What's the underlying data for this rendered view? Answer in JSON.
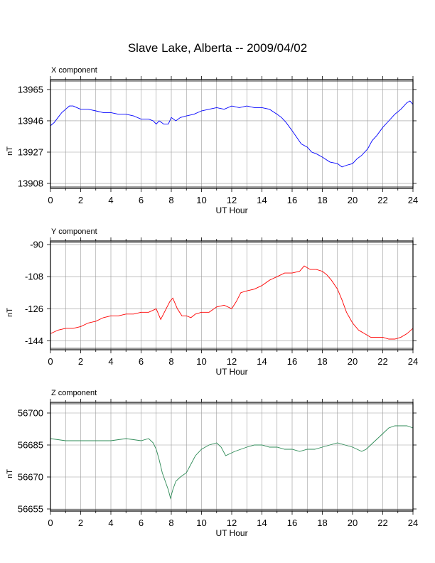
{
  "title": "Slave Lake, Alberta -- 2009/04/02",
  "chart_data": [
    {
      "type": "line",
      "panel_title": "X component",
      "xlabel": "UT Hour",
      "ylabel": "nT",
      "xlim": [
        0,
        24
      ],
      "ylim": [
        13905,
        13971
      ],
      "xticks": [
        0,
        2,
        4,
        6,
        8,
        10,
        12,
        14,
        16,
        18,
        20,
        22,
        24
      ],
      "yticks": [
        13908,
        13927,
        13946,
        13965
      ],
      "grid": true,
      "color": "#0000ff",
      "x": [
        0,
        0.25,
        0.5,
        0.75,
        1,
        1.25,
        1.5,
        1.75,
        2,
        2.5,
        3,
        3.5,
        4,
        4.5,
        5,
        5.5,
        6,
        6.5,
        6.8,
        7,
        7.2,
        7.5,
        7.8,
        8,
        8.3,
        8.6,
        9,
        9.5,
        10,
        10.5,
        11,
        11.5,
        12,
        12.5,
        13,
        13.5,
        14,
        14.5,
        15,
        15.3,
        15.6,
        16,
        16.3,
        16.6,
        17,
        17.3,
        17.6,
        18,
        18.5,
        19,
        19.3,
        19.6,
        20,
        20.3,
        20.6,
        21,
        21.3,
        21.6,
        22,
        22.4,
        22.8,
        23.2,
        23.6,
        23.8,
        24
      ],
      "y": [
        13943,
        13945,
        13948,
        13951,
        13953,
        13955,
        13955,
        13954,
        13953,
        13953,
        13952,
        13951,
        13951,
        13950,
        13950,
        13949,
        13947,
        13947,
        13946,
        13944,
        13946,
        13944,
        13944,
        13948,
        13946,
        13948,
        13949,
        13950,
        13952,
        13953,
        13954,
        13953,
        13955,
        13954,
        13955,
        13954,
        13954,
        13953,
        13950,
        13948,
        13945,
        13940,
        13936,
        13932,
        13930,
        13927,
        13926,
        13924,
        13921,
        13920,
        13918,
        13919,
        13920,
        13923,
        13925,
        13929,
        13934,
        13937,
        13942,
        13946,
        13950,
        13953,
        13957,
        13958,
        13956
      ]
    },
    {
      "type": "line",
      "panel_title": "Y component",
      "xlabel": "UT Hour",
      "ylabel": "nT",
      "xlim": [
        0,
        24
      ],
      "ylim": [
        -149,
        -88
      ],
      "xticks": [
        0,
        2,
        4,
        6,
        8,
        10,
        12,
        14,
        16,
        18,
        20,
        22,
        24
      ],
      "yticks": [
        -90,
        -108,
        -126,
        -144
      ],
      "grid": true,
      "color": "#ff0000",
      "x": [
        0,
        0.5,
        1,
        1.5,
        2,
        2.5,
        3,
        3.5,
        4,
        4.5,
        5,
        5.5,
        6,
        6.5,
        7,
        7.3,
        7.6,
        7.9,
        8.1,
        8.4,
        8.7,
        9,
        9.3,
        9.6,
        10,
        10.5,
        11,
        11.5,
        12,
        12.3,
        12.6,
        13,
        13.5,
        14,
        14.5,
        15,
        15.5,
        16,
        16.5,
        16.8,
        17.2,
        17.6,
        18,
        18.3,
        18.6,
        19,
        19.3,
        19.6,
        20,
        20.4,
        20.8,
        21.2,
        21.6,
        22,
        22.4,
        22.8,
        23.2,
        23.6,
        24
      ],
      "y": [
        -140,
        -138,
        -137,
        -137,
        -136,
        -134,
        -133,
        -131,
        -130,
        -130,
        -129,
        -129,
        -128,
        -128,
        -126,
        -132,
        -127,
        -122,
        -120,
        -126,
        -130,
        -130,
        -131,
        -129,
        -128,
        -128,
        -125,
        -124,
        -126,
        -122,
        -117,
        -116,
        -115,
        -113,
        -110,
        -108,
        -106,
        -106,
        -105,
        -102,
        -104,
        -104,
        -105,
        -107,
        -110,
        -115,
        -121,
        -128,
        -134,
        -138,
        -140,
        -142,
        -142,
        -142,
        -143,
        -143,
        -142,
        -140,
        -137
      ]
    },
    {
      "type": "line",
      "panel_title": "Z component",
      "xlabel": "UT Hour",
      "ylabel": "nT",
      "xlim": [
        0,
        24
      ],
      "ylim": [
        56654,
        56705
      ],
      "xticks": [
        0,
        2,
        4,
        6,
        8,
        10,
        12,
        14,
        16,
        18,
        20,
        22,
        24
      ],
      "yticks": [
        56655,
        56670,
        56685,
        56700
      ],
      "grid": true,
      "color": "#2e8b57",
      "x": [
        0,
        1,
        2,
        3,
        4,
        5,
        6,
        6.5,
        6.8,
        7,
        7.2,
        7.4,
        7.6,
        7.8,
        7.95,
        8.1,
        8.3,
        8.6,
        9,
        9.3,
        9.6,
        10,
        10.5,
        11,
        11.3,
        11.6,
        11.9,
        12.2,
        12.6,
        13,
        13.5,
        14,
        14.5,
        15,
        15.5,
        16,
        16.5,
        17,
        17.5,
        18,
        18.5,
        19,
        19.5,
        20,
        20.3,
        20.6,
        20.9,
        21.2,
        21.5,
        21.8,
        22.1,
        22.4,
        22.8,
        23.2,
        23.6,
        24
      ],
      "y": [
        56688,
        56687,
        56687,
        56687,
        56687,
        56688,
        56687,
        56688,
        56686,
        56683,
        56678,
        56672,
        56668,
        56664,
        56660,
        56664,
        56668,
        56670,
        56672,
        56676,
        56680,
        56683,
        56685,
        56686,
        56684,
        56680,
        56681,
        56682,
        56683,
        56684,
        56685,
        56685,
        56684,
        56684,
        56683,
        56683,
        56682,
        56683,
        56683,
        56684,
        56685,
        56686,
        56685,
        56684,
        56683,
        56682,
        56683,
        56685,
        56687,
        56689,
        56691,
        56693,
        56694,
        56694,
        56694,
        56693
      ]
    }
  ]
}
